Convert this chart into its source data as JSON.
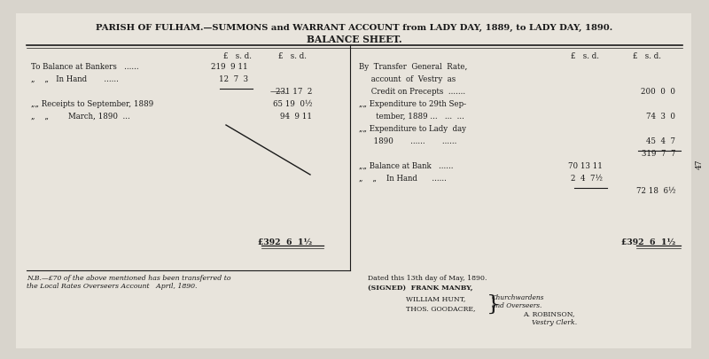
{
  "bg_color": "#d8d4cc",
  "paper_color": "#e8e4dc",
  "border_color": "#2a2a2a",
  "text_color": "#1a1a1a",
  "title1": "PARISH OF FULHAM.—SUMMONS and WARRANT ACCOUNT from LADY DAY, 1889, to LADY DAY, 1890.",
  "title2": "BALANCE SHEET.",
  "left_col_header": "£  s. d.    £  s. d.",
  "right_col_header": "£  s. d.    £  s. d.",
  "left_rows": [
    {
      "label": "To Balance at Bankers   ......",
      "inner": "219  9 11",
      "outer": ""
    },
    {
      "label": "„    „    In Hand       ......",
      "inner": "12  7  3",
      "outer": ""
    },
    {
      "label": "",
      "inner": "———.",
      "outer": "231 17  2"
    },
    {
      "label": "„„ Receipts to September, 1889",
      "inner": "",
      "outer": "65 19  0½"
    },
    {
      "label": "„    „         March, 1890 ...",
      "inner": "",
      "outer": "94  9 11"
    },
    {
      "label": "",
      "inner": "",
      "outer": ""
    },
    {
      "label": "",
      "inner": "",
      "outer": ""
    },
    {
      "label": "",
      "inner": "",
      "outer": ""
    },
    {
      "label": "",
      "inner": "",
      "outer": ""
    },
    {
      "label": "",
      "inner": "",
      "outer": ""
    },
    {
      "label": "",
      "inner": "",
      "outer": ""
    },
    {
      "label": "",
      "inner": "",
      "outer": ""
    },
    {
      "label": "£392  6  1½",
      "inner": "",
      "outer": ""
    }
  ],
  "right_rows": [
    {
      "label": "By  Transfer  General  Rate,",
      "inner": "",
      "outer": ""
    },
    {
      "label": "     account  of  Vestry  as",
      "inner": "",
      "outer": ""
    },
    {
      "label": "     Credit on Precepts  .......",
      "inner": "",
      "outer": "200  0  0"
    },
    {
      "label": "„„ Expenditure to 29th Sep-",
      "inner": "",
      "outer": ""
    },
    {
      "label": "       tember, 1889 ...    ...  ...",
      "inner": "",
      "outer": "74  3  0"
    },
    {
      "label": "„„ Expenditure to Lady  day",
      "inner": "",
      "outer": ""
    },
    {
      "label": "      1890       ......       ......",
      "inner": "",
      "outer": "45  4  7"
    },
    {
      "label": "",
      "inner": "",
      "outer": ""
    },
    {
      "label": "",
      "inner": "",
      "outer": "319  7  7"
    },
    {
      "label": "„„ Balance at Bank   ......",
      "inner": "70 13 11",
      "outer": ""
    },
    {
      "label": "„    „    In Hand      ......",
      "inner": "2  4  7½",
      "outer": ""
    },
    {
      "label": "",
      "inner": "———",
      "outer": "72 18  6½"
    },
    {
      "label": "£392  6  1½",
      "inner": "",
      "outer": ""
    }
  ],
  "nb_text": "N.B.—£70 of the above mentioned has been transferred to\nthe Local Rates Overseers Account   April, 1890.",
  "date_text": "Dated this 13th day of May, 1890.",
  "signed_text": "(SIGNED)  FRANK MANBY,",
  "signed2": "WILLIAM HUNT,",
  "signed3": "THOS. GOODACRE,",
  "church_text": "Churchwardens\nand Overseers.",
  "robinson_text": "A. ROBINSON,",
  "clerk_text": "Vestry Clerk.",
  "page_num": "47"
}
